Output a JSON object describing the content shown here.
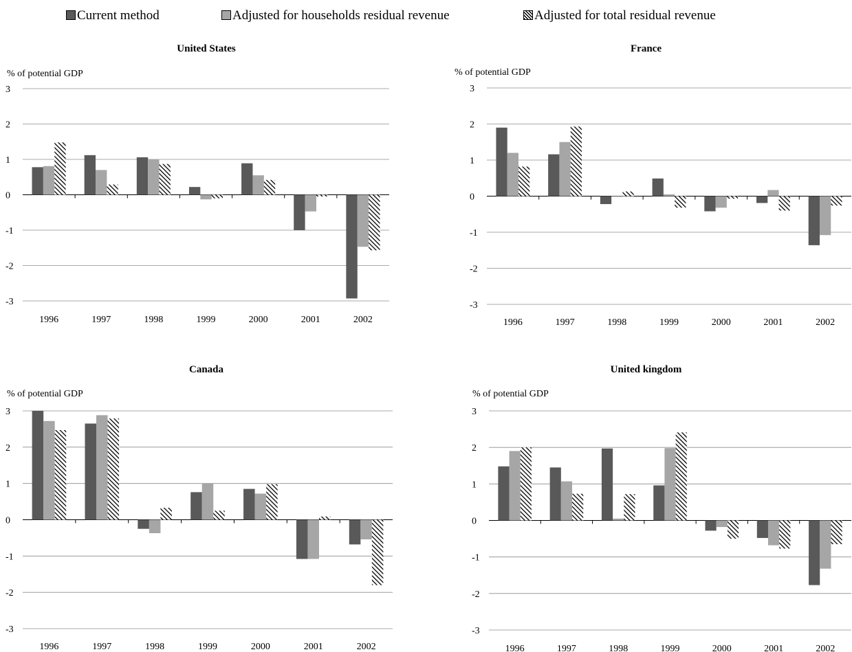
{
  "legend": [
    {
      "label": "Current method",
      "style": "dark"
    },
    {
      "label": "Adjusted for households residual revenue",
      "style": "light"
    },
    {
      "label": "Adjusted for total residual revenue",
      "style": "hatch"
    }
  ],
  "colors": {
    "dark": "#595959",
    "light": "#a6a6a6",
    "hatch": "#000000",
    "grid": "#8c8c8c"
  },
  "chart_data": [
    {
      "type": "bar",
      "title": "United States",
      "ylabel": "% of potential GDP",
      "ylim": [
        -3,
        3
      ],
      "yticks": [
        "3",
        "2",
        "1",
        "0",
        "-1",
        "-2",
        "-3"
      ],
      "categories": [
        "1996",
        "1997",
        "1998",
        "1999",
        "2000",
        "2001",
        "2002"
      ],
      "series": [
        {
          "name": "Current method",
          "values": [
            0.78,
            1.12,
            1.06,
            0.22,
            0.89,
            -1.0,
            -2.93
          ]
        },
        {
          "name": "Adjusted for households residual revenue",
          "values": [
            0.81,
            0.7,
            1.0,
            -0.13,
            0.55,
            -0.47,
            -1.47
          ]
        },
        {
          "name": "Adjusted for total residual revenue",
          "values": [
            1.48,
            0.29,
            0.87,
            -0.1,
            0.42,
            -0.05,
            -1.57
          ]
        }
      ]
    },
    {
      "type": "bar",
      "title": "France",
      "ylabel": "% of potential GDP",
      "ylim": [
        -3,
        3
      ],
      "yticks": [
        "3",
        "2",
        "1",
        "0",
        "-1",
        "-2",
        "-3"
      ],
      "categories": [
        "1996",
        "1997",
        "1998",
        "1999",
        "2000",
        "2001",
        "2002"
      ],
      "series": [
        {
          "name": "Current method",
          "values": [
            1.9,
            1.16,
            -0.22,
            0.49,
            -0.42,
            -0.19,
            -1.36
          ]
        },
        {
          "name": "Adjusted for households residual revenue",
          "values": [
            1.2,
            1.5,
            0.0,
            0.05,
            -0.32,
            0.17,
            -1.08
          ]
        },
        {
          "name": "Adjusted for total residual revenue",
          "values": [
            0.82,
            1.93,
            0.13,
            -0.32,
            -0.07,
            -0.4,
            -0.26
          ]
        }
      ]
    },
    {
      "type": "bar",
      "title": "Canada",
      "ylabel": "% of potential GDP",
      "ylim": [
        -3,
        3
      ],
      "yticks": [
        "3",
        "2",
        "1",
        "0",
        "-1",
        "-2",
        "-3"
      ],
      "categories": [
        "1996",
        "1997",
        "1998",
        "1999",
        "2000",
        "2001",
        "2002"
      ],
      "series": [
        {
          "name": "Current method",
          "values": [
            3.0,
            2.65,
            -0.25,
            0.76,
            0.85,
            -1.08,
            -0.68
          ]
        },
        {
          "name": "Adjusted for households residual revenue",
          "values": [
            2.72,
            2.88,
            -0.37,
            1.01,
            0.72,
            -1.08,
            -0.54
          ]
        },
        {
          "name": "Adjusted for total residual revenue",
          "values": [
            2.47,
            2.79,
            0.33,
            0.25,
            0.98,
            0.09,
            -1.8
          ]
        }
      ]
    },
    {
      "type": "bar",
      "title": "United kingdom",
      "ylabel": "% of potential GDP",
      "ylim": [
        -3,
        3
      ],
      "yticks": [
        "3",
        "2",
        "1",
        "0",
        "-1",
        "-2",
        "-3"
      ],
      "categories": [
        "1996",
        "1997",
        "1998",
        "1999",
        "2000",
        "2001",
        "2002"
      ],
      "series": [
        {
          "name": "Current method",
          "values": [
            1.48,
            1.45,
            1.97,
            0.96,
            -0.28,
            -0.48,
            -1.77
          ]
        },
        {
          "name": "Adjusted for households residual revenue",
          "values": [
            1.9,
            1.07,
            0.05,
            1.98,
            -0.18,
            -0.68,
            -1.32
          ]
        },
        {
          "name": "Adjusted for total residual revenue",
          "values": [
            2.0,
            0.73,
            0.72,
            2.41,
            -0.5,
            -0.77,
            -0.65
          ]
        }
      ]
    }
  ]
}
